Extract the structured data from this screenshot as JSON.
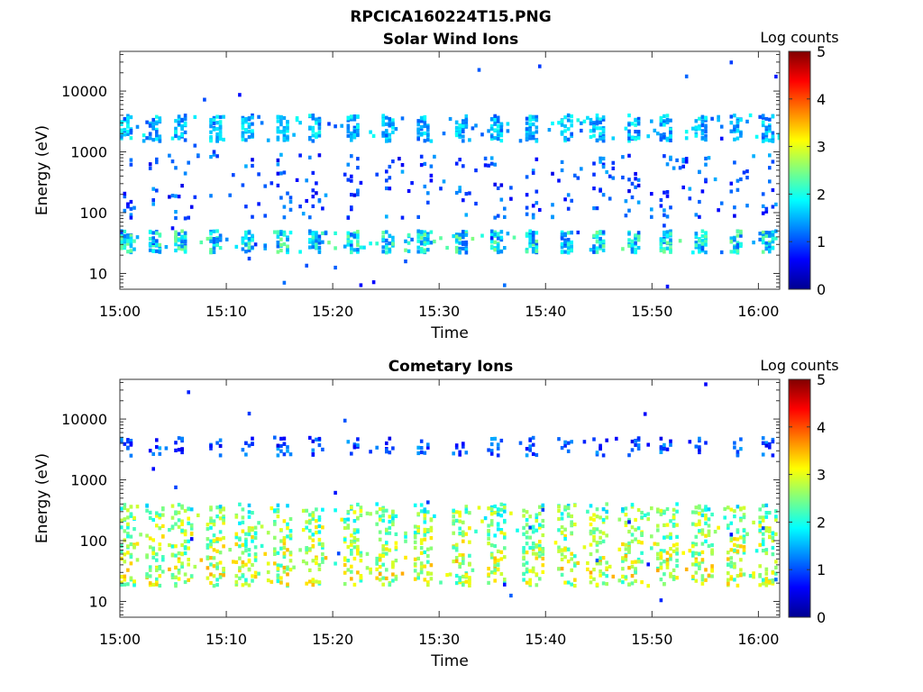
{
  "figure": {
    "filename": "RPCICA160224T15.PNG"
  },
  "chart_data": [
    {
      "type": "heatmap",
      "title": "Solar Wind Ions",
      "xlabel": "Time",
      "ylabel": "Energy (eV)",
      "x_tick_labels": [
        "15:00",
        "15:10",
        "15:20",
        "15:30",
        "15:40",
        "15:50",
        "16:00"
      ],
      "x_range_minutes": [
        0,
        62
      ],
      "y_scale": "log",
      "y_range_ev": [
        5.5,
        45000
      ],
      "y_tick_labels": [
        "10",
        "100",
        "1000",
        "10000"
      ],
      "colorbar": {
        "label": "Log counts",
        "range": [
          0,
          5
        ],
        "tick_labels": [
          "0",
          "1",
          "2",
          "3",
          "4",
          "5"
        ],
        "colormap": "jet"
      },
      "series": [
        {
          "energy_band_ev": [
            1500,
            4000
          ],
          "log_counts": [
            1,
            2
          ],
          "pattern": "periodic bursts, ~3.3 min"
        },
        {
          "energy_band_ev": [
            80,
            900
          ],
          "log_counts": [
            0.5,
            1.5
          ],
          "pattern": "sparse vertical streaks"
        },
        {
          "energy_band_ev": [
            22,
            50
          ],
          "log_counts": [
            1,
            2.5
          ],
          "pattern": "periodic bursts"
        }
      ],
      "burst_times_min": [
        0.3,
        3.1,
        5.6,
        8.9,
        11.8,
        15.2,
        18.2,
        21.8,
        25.0,
        28.4,
        32.0,
        35.3,
        38.6,
        41.8,
        44.8,
        48.0,
        51.2,
        54.5,
        57.7,
        60.7
      ]
    },
    {
      "type": "heatmap",
      "title": "Cometary Ions",
      "xlabel": "Time",
      "ylabel": "Energy (eV)",
      "x_tick_labels": [
        "15:00",
        "15:10",
        "15:20",
        "15:30",
        "15:40",
        "15:50",
        "16:00"
      ],
      "x_range_minutes": [
        0,
        62
      ],
      "y_scale": "log",
      "y_range_ev": [
        5.5,
        45000
      ],
      "y_tick_labels": [
        "10",
        "100",
        "1000",
        "10000"
      ],
      "colorbar": {
        "label": "Log counts",
        "range": [
          0,
          5
        ],
        "tick_labels": [
          "0",
          "1",
          "2",
          "3",
          "4",
          "5"
        ],
        "colormap": "jet"
      },
      "series": [
        {
          "energy_band_ev": [
            18,
            400
          ],
          "log_counts": [
            1.5,
            3
          ],
          "pattern": "periodic dense bursts, ~3.3 min"
        },
        {
          "energy_band_ev": [
            2500,
            5000
          ],
          "log_counts": [
            0.5,
            1.5
          ],
          "pattern": "faint high-energy streaks"
        }
      ],
      "burst_times_min": [
        0.3,
        3.1,
        5.6,
        8.9,
        11.8,
        15.2,
        18.2,
        21.8,
        25.0,
        28.4,
        32.0,
        35.3,
        38.6,
        41.8,
        44.8,
        48.0,
        51.2,
        54.5,
        57.7,
        60.7
      ]
    }
  ]
}
